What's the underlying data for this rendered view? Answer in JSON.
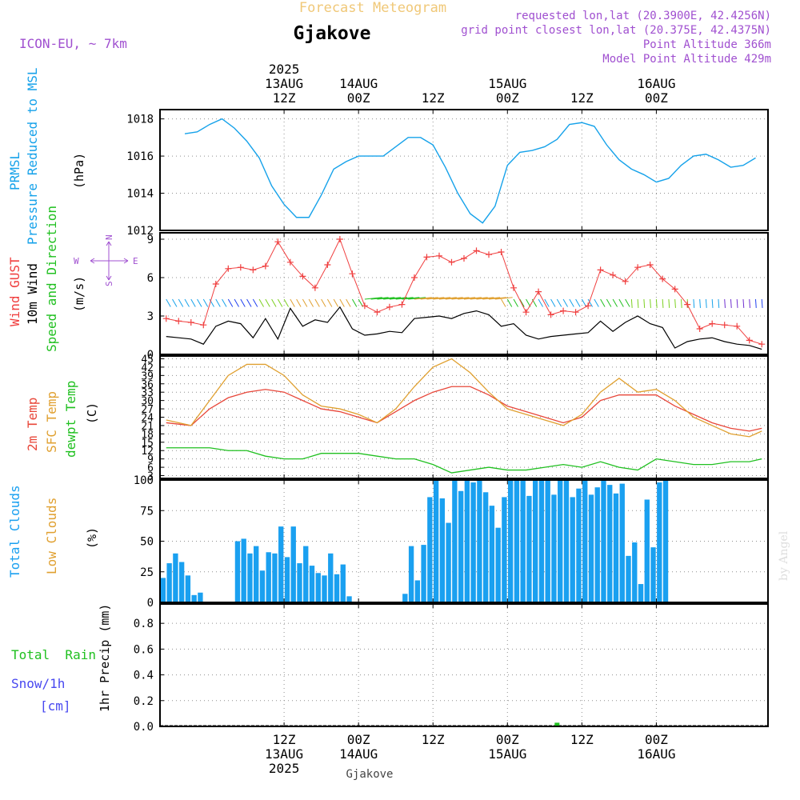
{
  "header": {
    "title": "Forecast Meteogram",
    "place": "Gjakove",
    "model": "ICON-EU, ~ 7km",
    "requested": "requested lon,lat (20.3900E, 42.4256N)",
    "grid_point": "grid point closest lon,lat (20.375E, 42.4375N)",
    "point_alt": "Point Altitude 366m",
    "model_alt": "Model Point Altitude 429m"
  },
  "footer": {
    "place": "Gjakove",
    "credit": "by Angel"
  },
  "time_axis": {
    "top_labels": [
      {
        "lines": [
          "2025",
          "13AUG",
          "12Z"
        ]
      },
      {
        "lines": [
          "14AUG",
          "00Z"
        ]
      },
      {
        "lines": [
          "12Z"
        ]
      },
      {
        "lines": [
          "15AUG",
          "00Z"
        ]
      },
      {
        "lines": [
          "12Z"
        ]
      },
      {
        "lines": [
          "16AUG",
          "00Z"
        ]
      }
    ],
    "bottom_labels": [
      {
        "lines": [
          "12Z",
          "13AUG",
          "2025"
        ]
      },
      {
        "lines": [
          "00Z",
          "14AUG"
        ]
      },
      {
        "lines": [
          "12Z"
        ]
      },
      {
        "lines": [
          "00Z",
          "15AUG"
        ]
      },
      {
        "lines": [
          "12Z"
        ]
      },
      {
        "lines": [
          "00Z",
          "16AUG"
        ]
      }
    ]
  },
  "labels": {
    "prmsl_1": "PRMSL",
    "prmsl_2": "Pressure Reduced to MSL",
    "prmsl_unit": "(hPa)",
    "wind_gust": "Wind GUST",
    "wind_10m": "10m Wind",
    "wind_dir": "Speed and Direction",
    "wind_unit": "(m/s)",
    "compass_n": "N",
    "compass_s": "S",
    "compass_e": "E",
    "compass_w": "W",
    "temp_2m": "2m Temp",
    "temp_sfc": "SFC Temp",
    "temp_dewpt": "dewpt Temp",
    "temp_unit": "(C)",
    "cloud_total": "Total Clouds",
    "cloud_low": "Low Clouds",
    "cloud_unit": "(%)",
    "rain_total": "Total  Rain",
    "rain_snow": "Snow/1h",
    "rain_snow_unit": "[cm]",
    "rain_axis": "1hr Precip (mm)"
  },
  "colors": {
    "pressure": "#16a2ea",
    "gust": "#f04040",
    "wind": "#000000",
    "temp2m": "#e8473a",
    "sfc": "#e0a030",
    "dewpt": "#20c020",
    "cloud": "#1aa0f0",
    "rain": "#20c020",
    "snow": "#4848f0",
    "meta": "#a050d0",
    "title": "#f0c878",
    "grid": "#909090"
  },
  "chart_data": [
    {
      "type": "line",
      "title": "PRMSL",
      "ylabel": "(hPa)",
      "ylim": [
        1012,
        1018.5
      ],
      "yticks": [
        1012,
        1014,
        1016,
        1018
      ],
      "series": [
        {
          "name": "PRMSL",
          "x": [
            -16,
            -14,
            -12,
            -10,
            -8,
            -6,
            -4,
            -2,
            0,
            2,
            4,
            6,
            8,
            10,
            12,
            14,
            16,
            18,
            20,
            22,
            24,
            26,
            28,
            30,
            32,
            34,
            36,
            38,
            40,
            42,
            44,
            46,
            48,
            50,
            52,
            54,
            56,
            58,
            60,
            62,
            64,
            66,
            68,
            70,
            72,
            74,
            76
          ],
          "values": [
            1017.2,
            1017.3,
            1017.7,
            1018.0,
            1017.5,
            1016.8,
            1015.9,
            1014.4,
            1013.4,
            1012.7,
            1012.7,
            1013.9,
            1015.3,
            1015.7,
            1016.0,
            1016.0,
            1016.0,
            1016.5,
            1017.0,
            1017.0,
            1016.6,
            1015.4,
            1014.0,
            1012.9,
            1012.4,
            1013.3,
            1015.5,
            1016.2,
            1016.3,
            1016.5,
            1016.9,
            1017.7,
            1017.8,
            1017.6,
            1016.6,
            1015.8,
            1015.3,
            1015.0,
            1014.6,
            1014.8,
            1015.5,
            1016.0,
            1016.1,
            1015.8,
            1015.4,
            1015.5,
            1015.9
          ]
        }
      ]
    },
    {
      "type": "line",
      "title": "Wind",
      "ylabel": "(m/s)",
      "ylim": [
        0,
        9.5
      ],
      "yticks": [
        0,
        3,
        6,
        9
      ],
      "series": [
        {
          "name": "Wind GUST",
          "x": [
            -19,
            -17,
            -15,
            -13,
            -11,
            -9,
            -7,
            -5,
            -3,
            -1,
            1,
            3,
            5,
            7,
            9,
            11,
            13,
            15,
            17,
            19,
            21,
            23,
            25,
            27,
            29,
            31,
            33,
            35,
            37,
            39,
            41,
            43,
            45,
            47,
            49,
            51,
            53,
            55,
            57,
            59,
            61,
            63,
            65,
            67,
            69,
            71,
            73,
            75,
            77
          ],
          "values": [
            2.8,
            2.6,
            2.5,
            2.3,
            5.5,
            6.7,
            6.8,
            6.6,
            6.9,
            8.8,
            7.2,
            6.1,
            5.2,
            7.0,
            9.0,
            6.3,
            3.8,
            3.3,
            3.7,
            3.9,
            6.0,
            7.6,
            7.7,
            7.2,
            7.5,
            8.1,
            7.8,
            8.0,
            5.2,
            3.3,
            4.9,
            3.1,
            3.4,
            3.3,
            3.8,
            6.6,
            6.2,
            5.7,
            6.8,
            7.0,
            5.9,
            5.1,
            3.9,
            2.0,
            2.4,
            2.3,
            2.2,
            1.1,
            0.8
          ]
        },
        {
          "name": "10m Wind",
          "x": [
            -19,
            -17,
            -15,
            -13,
            -11,
            -9,
            -7,
            -5,
            -3,
            -1,
            1,
            3,
            5,
            7,
            9,
            11,
            13,
            15,
            17,
            19,
            21,
            23,
            25,
            27,
            29,
            31,
            33,
            35,
            37,
            39,
            41,
            43,
            45,
            47,
            49,
            51,
            53,
            55,
            57,
            59,
            61,
            63,
            65,
            67,
            69,
            71,
            73,
            75,
            77
          ],
          "values": [
            1.4,
            1.3,
            1.2,
            0.8,
            2.2,
            2.6,
            2.4,
            1.3,
            2.8,
            1.2,
            3.6,
            2.2,
            2.7,
            2.5,
            3.7,
            2.0,
            1.5,
            1.6,
            1.8,
            1.7,
            2.8,
            2.9,
            3.0,
            2.8,
            3.2,
            3.4,
            3.1,
            2.2,
            2.4,
            1.5,
            1.2,
            1.4,
            1.5,
            1.6,
            1.7,
            2.6,
            1.8,
            2.5,
            3.0,
            2.4,
            2.1,
            0.5,
            1.0,
            1.2,
            1.3,
            1.0,
            0.8,
            0.7,
            0.4
          ]
        }
      ]
    },
    {
      "type": "line",
      "title": "Temperature",
      "ylabel": "(C)",
      "ylim": [
        2,
        46
      ],
      "yticks": [
        3,
        6,
        9,
        12,
        15,
        18,
        21,
        24,
        27,
        30,
        33,
        36,
        39,
        42,
        45
      ],
      "series": [
        {
          "name": "2m Temp",
          "x": [
            -19,
            -15,
            -12,
            -9,
            -6,
            -3,
            0,
            3,
            6,
            9,
            12,
            15,
            18,
            21,
            24,
            27,
            30,
            33,
            36,
            39,
            42,
            45,
            48,
            51,
            54,
            57,
            60,
            63,
            66,
            69,
            72,
            75,
            77
          ],
          "values": [
            22,
            21,
            27,
            31,
            33,
            34,
            33,
            30,
            27,
            26,
            24,
            22,
            26,
            30,
            33,
            35,
            35,
            32,
            28,
            26,
            24,
            22,
            24,
            30,
            32,
            32,
            32,
            28,
            25,
            22,
            20,
            19,
            20
          ]
        },
        {
          "name": "SFC Temp",
          "x": [
            -19,
            -15,
            -12,
            -9,
            -6,
            -3,
            0,
            3,
            6,
            9,
            12,
            15,
            18,
            21,
            24,
            27,
            30,
            33,
            36,
            39,
            42,
            45,
            48,
            51,
            54,
            57,
            60,
            63,
            66,
            69,
            72,
            75,
            77
          ],
          "values": [
            23,
            21,
            30,
            39,
            43,
            43,
            39,
            32,
            28,
            27,
            25,
            22,
            27,
            35,
            42,
            45,
            40,
            33,
            27,
            25,
            23,
            21,
            25,
            33,
            38,
            33,
            34,
            30,
            24,
            21,
            18,
            17,
            19
          ]
        },
        {
          "name": "dewpt Temp",
          "x": [
            -19,
            -15,
            -12,
            -9,
            -6,
            -3,
            0,
            3,
            6,
            9,
            12,
            15,
            18,
            21,
            24,
            27,
            30,
            33,
            36,
            39,
            42,
            45,
            48,
            51,
            54,
            57,
            60,
            63,
            66,
            69,
            72,
            75,
            77
          ],
          "values": [
            13,
            13,
            13,
            12,
            12,
            10,
            9,
            9,
            11,
            11,
            11,
            10,
            9,
            9,
            7,
            4,
            5,
            6,
            5,
            5,
            6,
            7,
            6,
            8,
            6,
            5,
            9,
            8,
            7,
            7,
            8,
            8,
            9
          ]
        }
      ]
    },
    {
      "type": "bar",
      "title": "Clouds",
      "ylabel": "(%)",
      "ylim": [
        0,
        100
      ],
      "yticks": [
        0,
        25,
        50,
        75,
        100
      ],
      "x_start": -19.5,
      "x_step": 1,
      "series": [
        {
          "name": "Total Clouds",
          "values": [
            20,
            32,
            40,
            33,
            22,
            6,
            8,
            0,
            0,
            0,
            0,
            0,
            50,
            52,
            40,
            46,
            26,
            41,
            40,
            62,
            37,
            62,
            32,
            46,
            30,
            24,
            22,
            40,
            23,
            31,
            5,
            0,
            0,
            0,
            0,
            0,
            0,
            0,
            0,
            7,
            46,
            18,
            47,
            86,
            100,
            85,
            65,
            100,
            91,
            100,
            98,
            100,
            90,
            79,
            61,
            86,
            100,
            100,
            100,
            87,
            100,
            100,
            100,
            88,
            100,
            100,
            86,
            93,
            100,
            88,
            94,
            100,
            96,
            89,
            97,
            38,
            49,
            15,
            84,
            45,
            98,
            100
          ]
        },
        {
          "name": "Low Clouds",
          "values": []
        }
      ]
    },
    {
      "type": "bar",
      "title": "Precipitation",
      "ylabel": "1hr Precip (mm)",
      "ylim": [
        0,
        0.95
      ],
      "yticks": [
        0,
        0.2,
        0.4,
        0.6,
        0.8
      ],
      "series": [
        {
          "name": "Total Rain",
          "x": [
            44
          ],
          "values": [
            0.01
          ]
        },
        {
          "name": "Snow/1h",
          "x": [],
          "values": []
        }
      ]
    }
  ]
}
